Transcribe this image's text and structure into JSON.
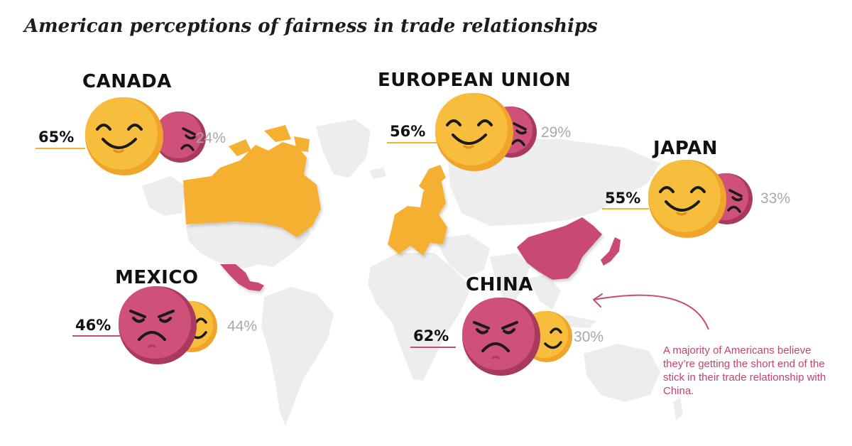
{
  "title": "American perceptions of fairness in trade relationships",
  "colors": {
    "positive": "#f5b032",
    "negative": "#c94a72",
    "land": "#ededed",
    "muted_text": "#a8a8a8"
  },
  "countries": [
    {
      "name": "CANADA",
      "primary_pct": "65%",
      "secondary_pct": "24%",
      "primary_sentiment": "happy",
      "map_color": "positive"
    },
    {
      "name": "EUROPEAN UNION",
      "primary_pct": "56%",
      "secondary_pct": "29%",
      "primary_sentiment": "happy",
      "map_color": "positive"
    },
    {
      "name": "JAPAN",
      "primary_pct": "55%",
      "secondary_pct": "33%",
      "primary_sentiment": "happy",
      "map_color": "negative"
    },
    {
      "name": "MEXICO",
      "primary_pct": "46%",
      "secondary_pct": "44%",
      "primary_sentiment": "angry",
      "map_color": "negative"
    },
    {
      "name": "CHINA",
      "primary_pct": "62%",
      "secondary_pct": "30%",
      "primary_sentiment": "angry",
      "map_color": "negative"
    }
  ],
  "annotation": "A majority of Americans believe they’re getting the short end of the stick in their trade relationship with China.",
  "icons": [
    "happy-face-icon",
    "angry-face-icon",
    "annotation-arrow-icon"
  ]
}
